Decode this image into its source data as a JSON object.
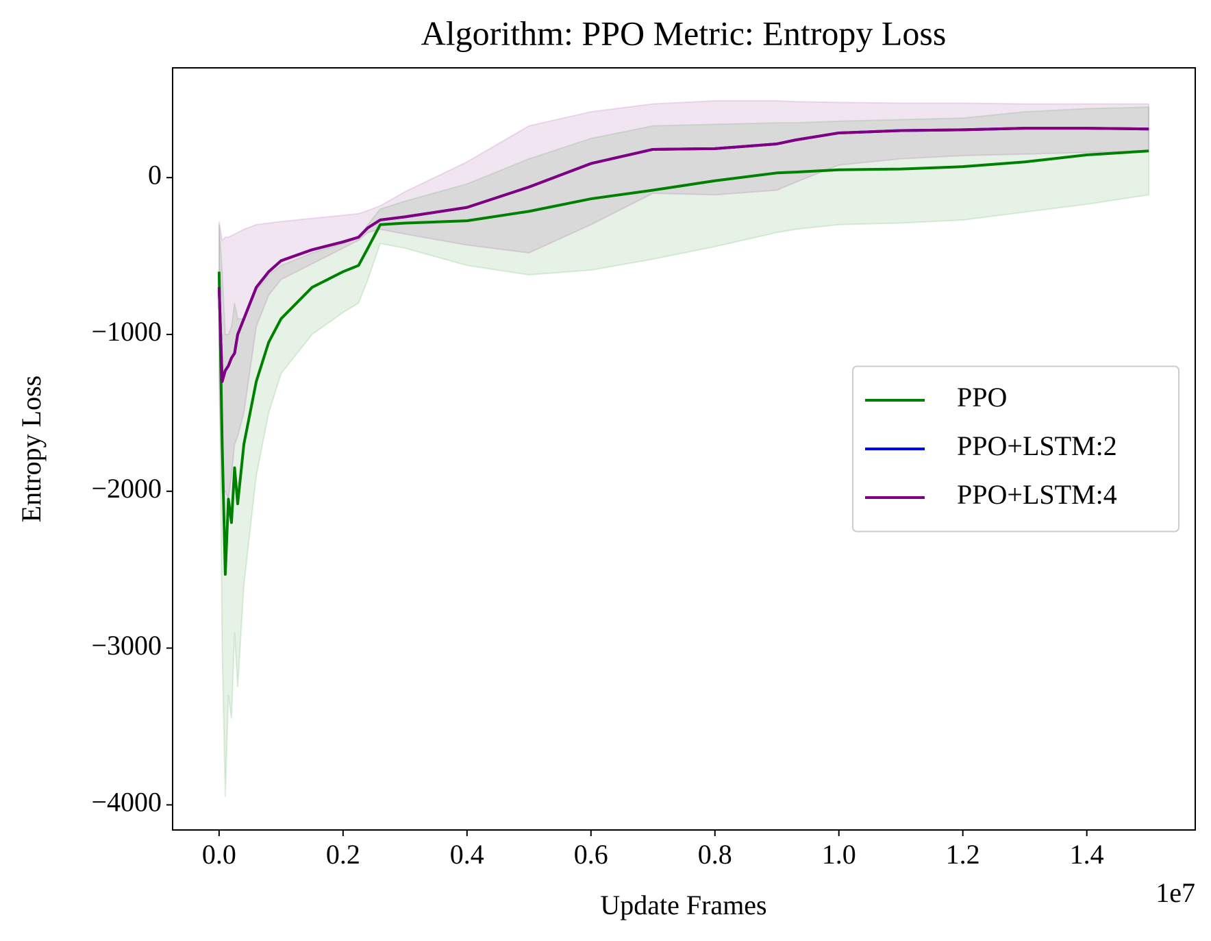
{
  "chart_data": {
    "type": "line",
    "title": "Algorithm: PPO Metric: Entropy Loss",
    "x_label": "Update Frames",
    "y_label": "Entropy Loss",
    "x_offset_label": "1e7",
    "x": [
      0,
      50000,
      100000,
      150000,
      200000,
      250000,
      300000,
      400000,
      600000,
      800000,
      1000000,
      1500000,
      2000000,
      2250000,
      2400000,
      2600000,
      3000000,
      4000000,
      5000000,
      6000000,
      7000000,
      8000000,
      9000000,
      9300000,
      10000000,
      11000000,
      12000000,
      13000000,
      14000000,
      15000000
    ],
    "series": [
      {
        "name": "PPO",
        "color": "#008000",
        "values": [
          -600,
          -1700,
          -2530,
          -2050,
          -2200,
          -1850,
          -2080,
          -1700,
          -1300,
          -1050,
          -900,
          -700,
          -600,
          -560,
          -450,
          -300,
          -290,
          -275,
          -215,
          -135,
          -80,
          -20,
          30,
          35,
          50,
          55,
          70,
          100,
          145,
          170
        ],
        "lower": [
          -1000,
          -3000,
          -3950,
          -3300,
          -3450,
          -2900,
          -3250,
          -2600,
          -1900,
          -1500,
          -1250,
          -1000,
          -860,
          -800,
          -650,
          -420,
          -450,
          -560,
          -620,
          -590,
          -520,
          -440,
          -350,
          -330,
          -300,
          -290,
          -270,
          -220,
          -170,
          -110
        ],
        "upper": [
          -300,
          -600,
          -1000,
          -1000,
          -950,
          -800,
          -900,
          -900,
          -720,
          -620,
          -560,
          -480,
          -420,
          -380,
          -300,
          -200,
          -150,
          -40,
          120,
          250,
          330,
          340,
          350,
          350,
          360,
          370,
          380,
          420,
          440,
          450
        ]
      },
      {
        "name": "PPO+LSTM:2",
        "color": "#0000ff",
        "values": [
          -700,
          -1300,
          -1230,
          -1200,
          -1150,
          -1120,
          -1000,
          -900,
          -700,
          -600,
          -530,
          -460,
          -410,
          -380,
          -320,
          -270,
          -250,
          -190,
          -60,
          90,
          180,
          185,
          215,
          240,
          285,
          300,
          305,
          315,
          315,
          310
        ]
      },
      {
        "name": "PPO+LSTM:4",
        "color": "#800080",
        "values": [
          -700,
          -1300,
          -1230,
          -1200,
          -1150,
          -1120,
          -1000,
          -900,
          -700,
          -600,
          -530,
          -460,
          -410,
          -380,
          -320,
          -270,
          -250,
          -190,
          -60,
          90,
          180,
          185,
          215,
          240,
          285,
          300,
          305,
          315,
          315,
          310
        ],
        "lower": [
          -1300,
          -2000,
          -2000,
          -2050,
          -1900,
          -1700,
          -1650,
          -1500,
          -950,
          -750,
          -650,
          -550,
          -450,
          -400,
          -350,
          -330,
          -360,
          -430,
          -480,
          -300,
          -100,
          -110,
          -80,
          -30,
          80,
          120,
          140,
          150,
          160,
          170
        ],
        "upper": [
          -280,
          -400,
          -380,
          -380,
          -370,
          -360,
          -350,
          -330,
          -300,
          -290,
          -280,
          -260,
          -240,
          -230,
          -210,
          -180,
          -90,
          100,
          330,
          420,
          470,
          490,
          490,
          485,
          480,
          475,
          475,
          470,
          470,
          470
        ]
      }
    ],
    "xlim": [
      -750000,
      15750000
    ],
    "ylim": [
      -4160,
      700
    ],
    "xticks": [
      {
        "value": 0,
        "label": "0.0"
      },
      {
        "value": 2000000,
        "label": "0.2"
      },
      {
        "value": 4000000,
        "label": "0.4"
      },
      {
        "value": 6000000,
        "label": "0.6"
      },
      {
        "value": 8000000,
        "label": "0.8"
      },
      {
        "value": 10000000,
        "label": "1.0"
      },
      {
        "value": 12000000,
        "label": "1.2"
      },
      {
        "value": 14000000,
        "label": "1.4"
      }
    ],
    "yticks": [
      {
        "value": -4000,
        "label": "−4000"
      },
      {
        "value": -3000,
        "label": "−3000"
      },
      {
        "value": -2000,
        "label": "−2000"
      },
      {
        "value": -1000,
        "label": "−1000"
      },
      0
    ],
    "legend": "center right",
    "grid": false
  }
}
